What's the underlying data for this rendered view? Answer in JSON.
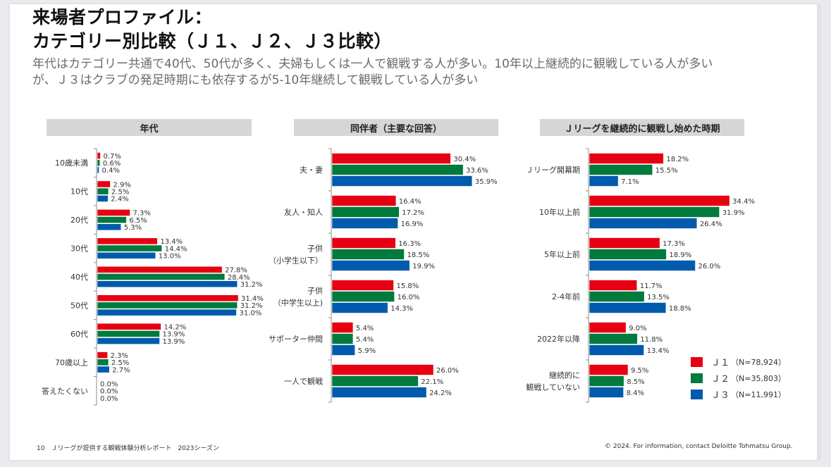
{
  "slide": {
    "title_line1": "来場者プロファイル：",
    "title_line2": "カテゴリー別比較（Ｊ１、Ｊ２、Ｊ３比較）",
    "subtitle_line1": "年代はカテゴリー共通で40代、50代が多く、夫婦もしくは一人で観戦する人が多い。10年以上継続的に観戦している人が多い",
    "subtitle_line2": "が、Ｊ３はクラブの発足時期にも依存するが5-10年継続して観戦している人が多い",
    "footer_left": "10　Ｊリーグが提供する観戦体験分析レポート　2023シーズン",
    "footer_right": "© 2024. For information, contact Deloitte Tohmatsu Group."
  },
  "legend": {
    "items": [
      {
        "name": "Ｊ１",
        "n": "（N=78,924）",
        "color": "#e60012"
      },
      {
        "name": "Ｊ２",
        "n": "（N=35,803）",
        "color": "#007a3d"
      },
      {
        "name": "Ｊ３",
        "n": "（N=11,991）",
        "color": "#005bac"
      }
    ]
  },
  "chart_data": [
    {
      "type": "bar",
      "orientation": "horizontal",
      "title": "年代",
      "categories": [
        "10歳未満",
        "10代",
        "20代",
        "30代",
        "40代",
        "50代",
        "60代",
        "70歳以上",
        "答えたくない"
      ],
      "series": [
        {
          "name": "Ｊ１",
          "color": "#e60012",
          "values": [
            0.7,
            2.9,
            7.3,
            13.4,
            27.8,
            31.4,
            14.2,
            2.3,
            0.0
          ]
        },
        {
          "name": "Ｊ２",
          "color": "#007a3d",
          "values": [
            0.6,
            2.5,
            6.5,
            14.4,
            28.4,
            31.2,
            13.9,
            2.5,
            0.0
          ]
        },
        {
          "name": "Ｊ３",
          "color": "#005bac",
          "values": [
            0.4,
            2.4,
            5.3,
            13.0,
            31.2,
            31.0,
            13.9,
            2.7,
            0.0
          ]
        }
      ],
      "unit": "%",
      "xlabel": "",
      "ylabel": "",
      "grid": false
    },
    {
      "type": "bar",
      "orientation": "horizontal",
      "title": "同伴者（主要な回答）",
      "categories": [
        "夫・妻",
        "友人・知人",
        "子供\n（小学生以下）",
        "子供\n（中学生以上)",
        "サポーター仲間",
        "一人で観戦"
      ],
      "series": [
        {
          "name": "Ｊ１",
          "color": "#e60012",
          "values": [
            30.4,
            16.4,
            16.3,
            15.8,
            5.4,
            26.0
          ]
        },
        {
          "name": "Ｊ２",
          "color": "#007a3d",
          "values": [
            33.6,
            17.2,
            18.5,
            16.0,
            5.4,
            22.1
          ]
        },
        {
          "name": "Ｊ３",
          "color": "#005bac",
          "values": [
            35.9,
            16.9,
            19.9,
            14.3,
            5.9,
            24.2
          ]
        }
      ],
      "unit": "%",
      "xlabel": "",
      "ylabel": "",
      "grid": false
    },
    {
      "type": "bar",
      "orientation": "horizontal",
      "title": "Ｊリーグを継続的に観戦し始めた時期",
      "categories": [
        "Ｊリーグ開幕期",
        "10年以上前",
        "5年以上前",
        "2-4年前",
        "2022年以降",
        "継続的に\n観戦していない"
      ],
      "series": [
        {
          "name": "Ｊ１",
          "color": "#e60012",
          "values": [
            18.2,
            34.4,
            17.3,
            11.7,
            9.0,
            9.5
          ]
        },
        {
          "name": "Ｊ２",
          "color": "#007a3d",
          "values": [
            15.5,
            31.9,
            18.9,
            13.5,
            11.8,
            8.5
          ]
        },
        {
          "name": "Ｊ３",
          "color": "#005bac",
          "values": [
            7.1,
            26.4,
            26.0,
            18.8,
            13.4,
            8.4
          ]
        }
      ],
      "unit": "%",
      "xlabel": "",
      "ylabel": "",
      "grid": false
    }
  ]
}
